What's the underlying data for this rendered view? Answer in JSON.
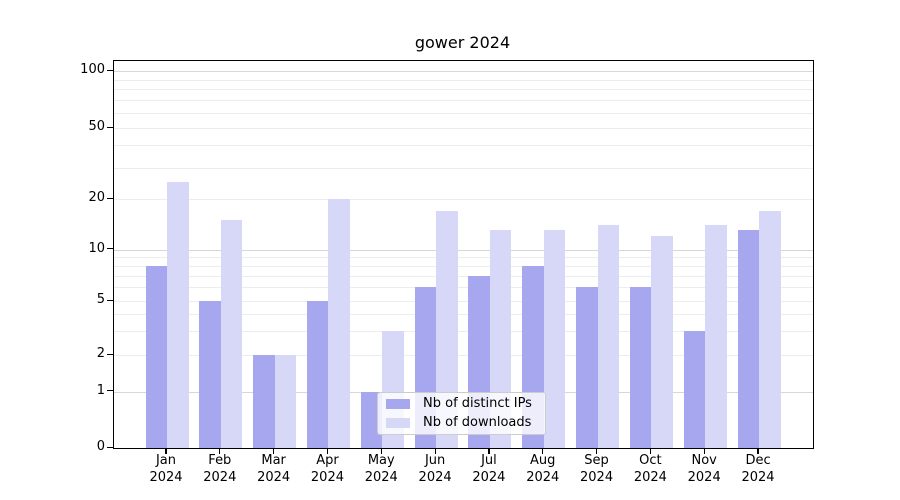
{
  "title": "gower 2024",
  "legend": {
    "items": [
      {
        "label": "Nb of distinct IPs",
        "color": "#a7a7f0"
      },
      {
        "label": "Nb of downloads",
        "color": "#d7d7f8"
      }
    ]
  },
  "y_axis": {
    "tick_labels": [
      "100",
      "50",
      "20",
      "10",
      "5",
      "2",
      "1",
      "0"
    ]
  },
  "x_axis": {
    "year": "2024",
    "months": [
      "Jan",
      "Feb",
      "Mar",
      "Apr",
      "May",
      "Jun",
      "Jul",
      "Aug",
      "Sep",
      "Oct",
      "Nov",
      "Dec"
    ]
  },
  "chart_data": {
    "type": "bar",
    "title": "gower 2024",
    "categories": [
      "Jan 2024",
      "Feb 2024",
      "Mar 2024",
      "Apr 2024",
      "May 2024",
      "Jun 2024",
      "Jul 2024",
      "Aug 2024",
      "Sep 2024",
      "Oct 2024",
      "Nov 2024",
      "Dec 2024"
    ],
    "series": [
      {
        "name": "Nb of distinct IPs",
        "color": "#a7a7f0",
        "values": [
          8,
          5,
          2,
          5,
          1,
          6,
          7,
          8,
          6,
          6,
          3,
          13
        ]
      },
      {
        "name": "Nb of downloads",
        "color": "#d7d7f8",
        "values": [
          25,
          15,
          2,
          20,
          3,
          17,
          13,
          13,
          14,
          12,
          14,
          17
        ]
      }
    ],
    "y_ticks": [
      0,
      1,
      2,
      5,
      10,
      20,
      50,
      100
    ],
    "ylim": [
      0,
      100
    ],
    "scale": "symlog (linear 0-1, logarithmic above)",
    "grid": "horizontal major and minor gridlines",
    "legend_position": "inside plot, lower center",
    "xlabel": "",
    "ylabel": ""
  }
}
